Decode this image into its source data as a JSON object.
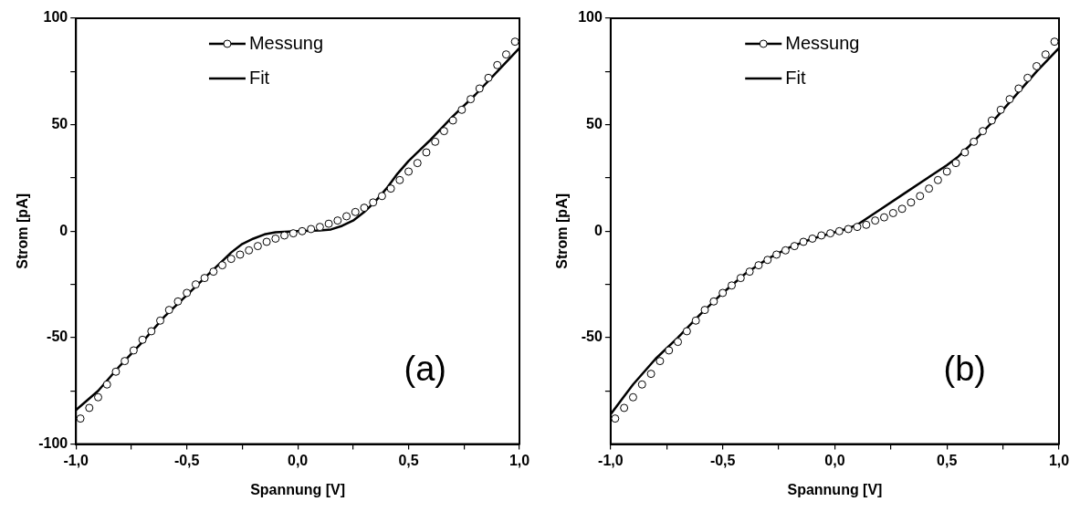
{
  "chart_data": [
    {
      "type": "scatter",
      "xlabel": "Spannung [V]",
      "ylabel": "Strom [pA]",
      "annotations": [
        "(a)"
      ],
      "legend": "top",
      "marker": "circle",
      "grid": false,
      "xlim": [
        -1,
        1
      ],
      "xticks": [
        {
          "value": -1,
          "label": "-1,0"
        },
        {
          "value": -0.75,
          "label": null
        },
        {
          "value": -0.5,
          "label": "-0,5"
        },
        {
          "value": -0.25,
          "label": null
        },
        {
          "value": 0,
          "label": "0,0"
        },
        {
          "value": 0.25,
          "label": null
        },
        {
          "value": 0.5,
          "label": "0,5"
        },
        {
          "value": 0.75,
          "label": null
        },
        {
          "value": 1,
          "label": "1,0"
        }
      ],
      "ylim": [
        -100,
        100
      ],
      "yticks": [
        -100,
        {
          "value": -75,
          "label": null
        },
        -50,
        {
          "value": -25,
          "label": null
        },
        0,
        {
          "value": 25,
          "label": null
        },
        50,
        {
          "value": 75,
          "label": null
        },
        100
      ],
      "series": [
        {
          "name": "Messung",
          "color": "#000000",
          "x": [
            -0.98,
            -0.94,
            -0.9,
            -0.86,
            -0.82,
            -0.78,
            -0.74,
            -0.7,
            -0.66,
            -0.62,
            -0.58,
            -0.54,
            -0.5,
            -0.46,
            -0.42,
            -0.38,
            -0.34,
            -0.3,
            -0.26,
            -0.22,
            -0.18,
            -0.14,
            -0.1,
            -0.06,
            -0.02,
            0.02,
            0.06,
            0.1,
            0.14,
            0.18,
            0.22,
            0.26,
            0.3,
            0.34,
            0.38,
            0.42,
            0.46,
            0.5,
            0.54,
            0.58,
            0.62,
            0.66,
            0.7,
            0.74,
            0.78,
            0.82,
            0.86,
            0.9,
            0.94,
            0.98
          ],
          "values": [
            -88,
            -83,
            -78,
            -72,
            -66,
            -61,
            -56,
            -51,
            -47,
            -42,
            -37,
            -33,
            -29,
            -25,
            -22,
            -19,
            -16,
            -13,
            -11,
            -9,
            -7,
            -5,
            -3.5,
            -2,
            -1,
            0,
            1,
            2,
            3.5,
            5,
            7,
            9,
            11,
            13.5,
            16.5,
            20,
            24,
            28,
            32,
            37,
            42,
            47,
            52,
            57,
            62,
            67,
            72,
            78,
            83,
            89
          ]
        },
        {
          "name": "Fit",
          "type": "line",
          "marker": "none",
          "color": "#000000",
          "x": [
            -1,
            -0.9,
            -0.8,
            -0.7,
            -0.6,
            -0.5,
            -0.4,
            -0.35,
            -0.3,
            -0.25,
            -0.2,
            -0.15,
            -0.1,
            0,
            0.1,
            0.15,
            0.2,
            0.25,
            0.3,
            0.35,
            0.4,
            0.45,
            0.5,
            0.55,
            0.6,
            0.7,
            0.8,
            0.9,
            1
          ],
          "values": [
            -84,
            -75,
            -63,
            -52,
            -40,
            -30,
            -20,
            -15,
            -10,
            -6,
            -3.5,
            -1.5,
            -0.5,
            0,
            0.3,
            0.8,
            2.5,
            5,
            9,
            14,
            20,
            27,
            33,
            38,
            43,
            54,
            64,
            75,
            86
          ]
        }
      ]
    },
    {
      "type": "scatter",
      "xlabel": "Spannung [V]",
      "ylabel": "Strom [pA]",
      "annotations": [
        "(b)"
      ],
      "legend": "top",
      "marker": "circle",
      "grid": false,
      "xlim": [
        -1,
        1
      ],
      "xticks": [
        {
          "value": -1,
          "label": "-1,0"
        },
        {
          "value": -0.75,
          "label": null
        },
        {
          "value": -0.5,
          "label": "-0,5"
        },
        {
          "value": -0.25,
          "label": null
        },
        {
          "value": 0,
          "label": "0,0"
        },
        {
          "value": 0.25,
          "label": null
        },
        {
          "value": 0.5,
          "label": "0,5"
        },
        {
          "value": 0.75,
          "label": null
        },
        {
          "value": 1,
          "label": "1,0"
        }
      ],
      "ylim": [
        -100,
        100
      ],
      "yticks": [
        {
          "value": -75,
          "label": null
        },
        -50,
        {
          "value": -25,
          "label": null
        },
        0,
        {
          "value": 25,
          "label": null
        },
        50,
        {
          "value": 75,
          "label": null
        },
        100
      ],
      "series": [
        {
          "name": "Messung",
          "color": "#000000",
          "x": [
            -0.98,
            -0.94,
            -0.9,
            -0.86,
            -0.82,
            -0.78,
            -0.74,
            -0.7,
            -0.66,
            -0.62,
            -0.58,
            -0.54,
            -0.5,
            -0.46,
            -0.42,
            -0.38,
            -0.34,
            -0.3,
            -0.26,
            -0.22,
            -0.18,
            -0.14,
            -0.1,
            -0.06,
            -0.02,
            0.02,
            0.06,
            0.1,
            0.14,
            0.18,
            0.22,
            0.26,
            0.3,
            0.34,
            0.38,
            0.42,
            0.46,
            0.5,
            0.54,
            0.58,
            0.62,
            0.66,
            0.7,
            0.74,
            0.78,
            0.82,
            0.86,
            0.9,
            0.94,
            0.98
          ],
          "values": [
            -88,
            -83,
            -78,
            -72,
            -67,
            -61,
            -56,
            -52,
            -47,
            -42,
            -37,
            -33,
            -29,
            -25.5,
            -22,
            -19,
            -16,
            -13.5,
            -11,
            -9,
            -7,
            -5,
            -3.5,
            -2,
            -1,
            0,
            1,
            2,
            3,
            5,
            6.5,
            8.5,
            10.5,
            13.5,
            16.5,
            20,
            24,
            28,
            32,
            37,
            42,
            47,
            52,
            57,
            62,
            67,
            72,
            77.5,
            83,
            89
          ]
        },
        {
          "name": "Fit",
          "type": "line",
          "marker": "none",
          "color": "#000000",
          "x": [
            -1,
            -0.95,
            -0.9,
            -0.8,
            -0.7,
            -0.6,
            -0.5,
            -0.4,
            -0.3,
            -0.2,
            -0.1,
            0,
            0.05,
            0.1,
            0.2,
            0.3,
            0.4,
            0.5,
            0.55,
            0.6,
            0.7,
            0.8,
            0.9,
            1
          ],
          "values": [
            -86,
            -79,
            -72,
            -60,
            -50,
            -39,
            -29,
            -20,
            -13,
            -7.5,
            -3.5,
            -0.5,
            1,
            3,
            10,
            17,
            24,
            31,
            35,
            40,
            51,
            63,
            75,
            86
          ]
        }
      ]
    }
  ]
}
